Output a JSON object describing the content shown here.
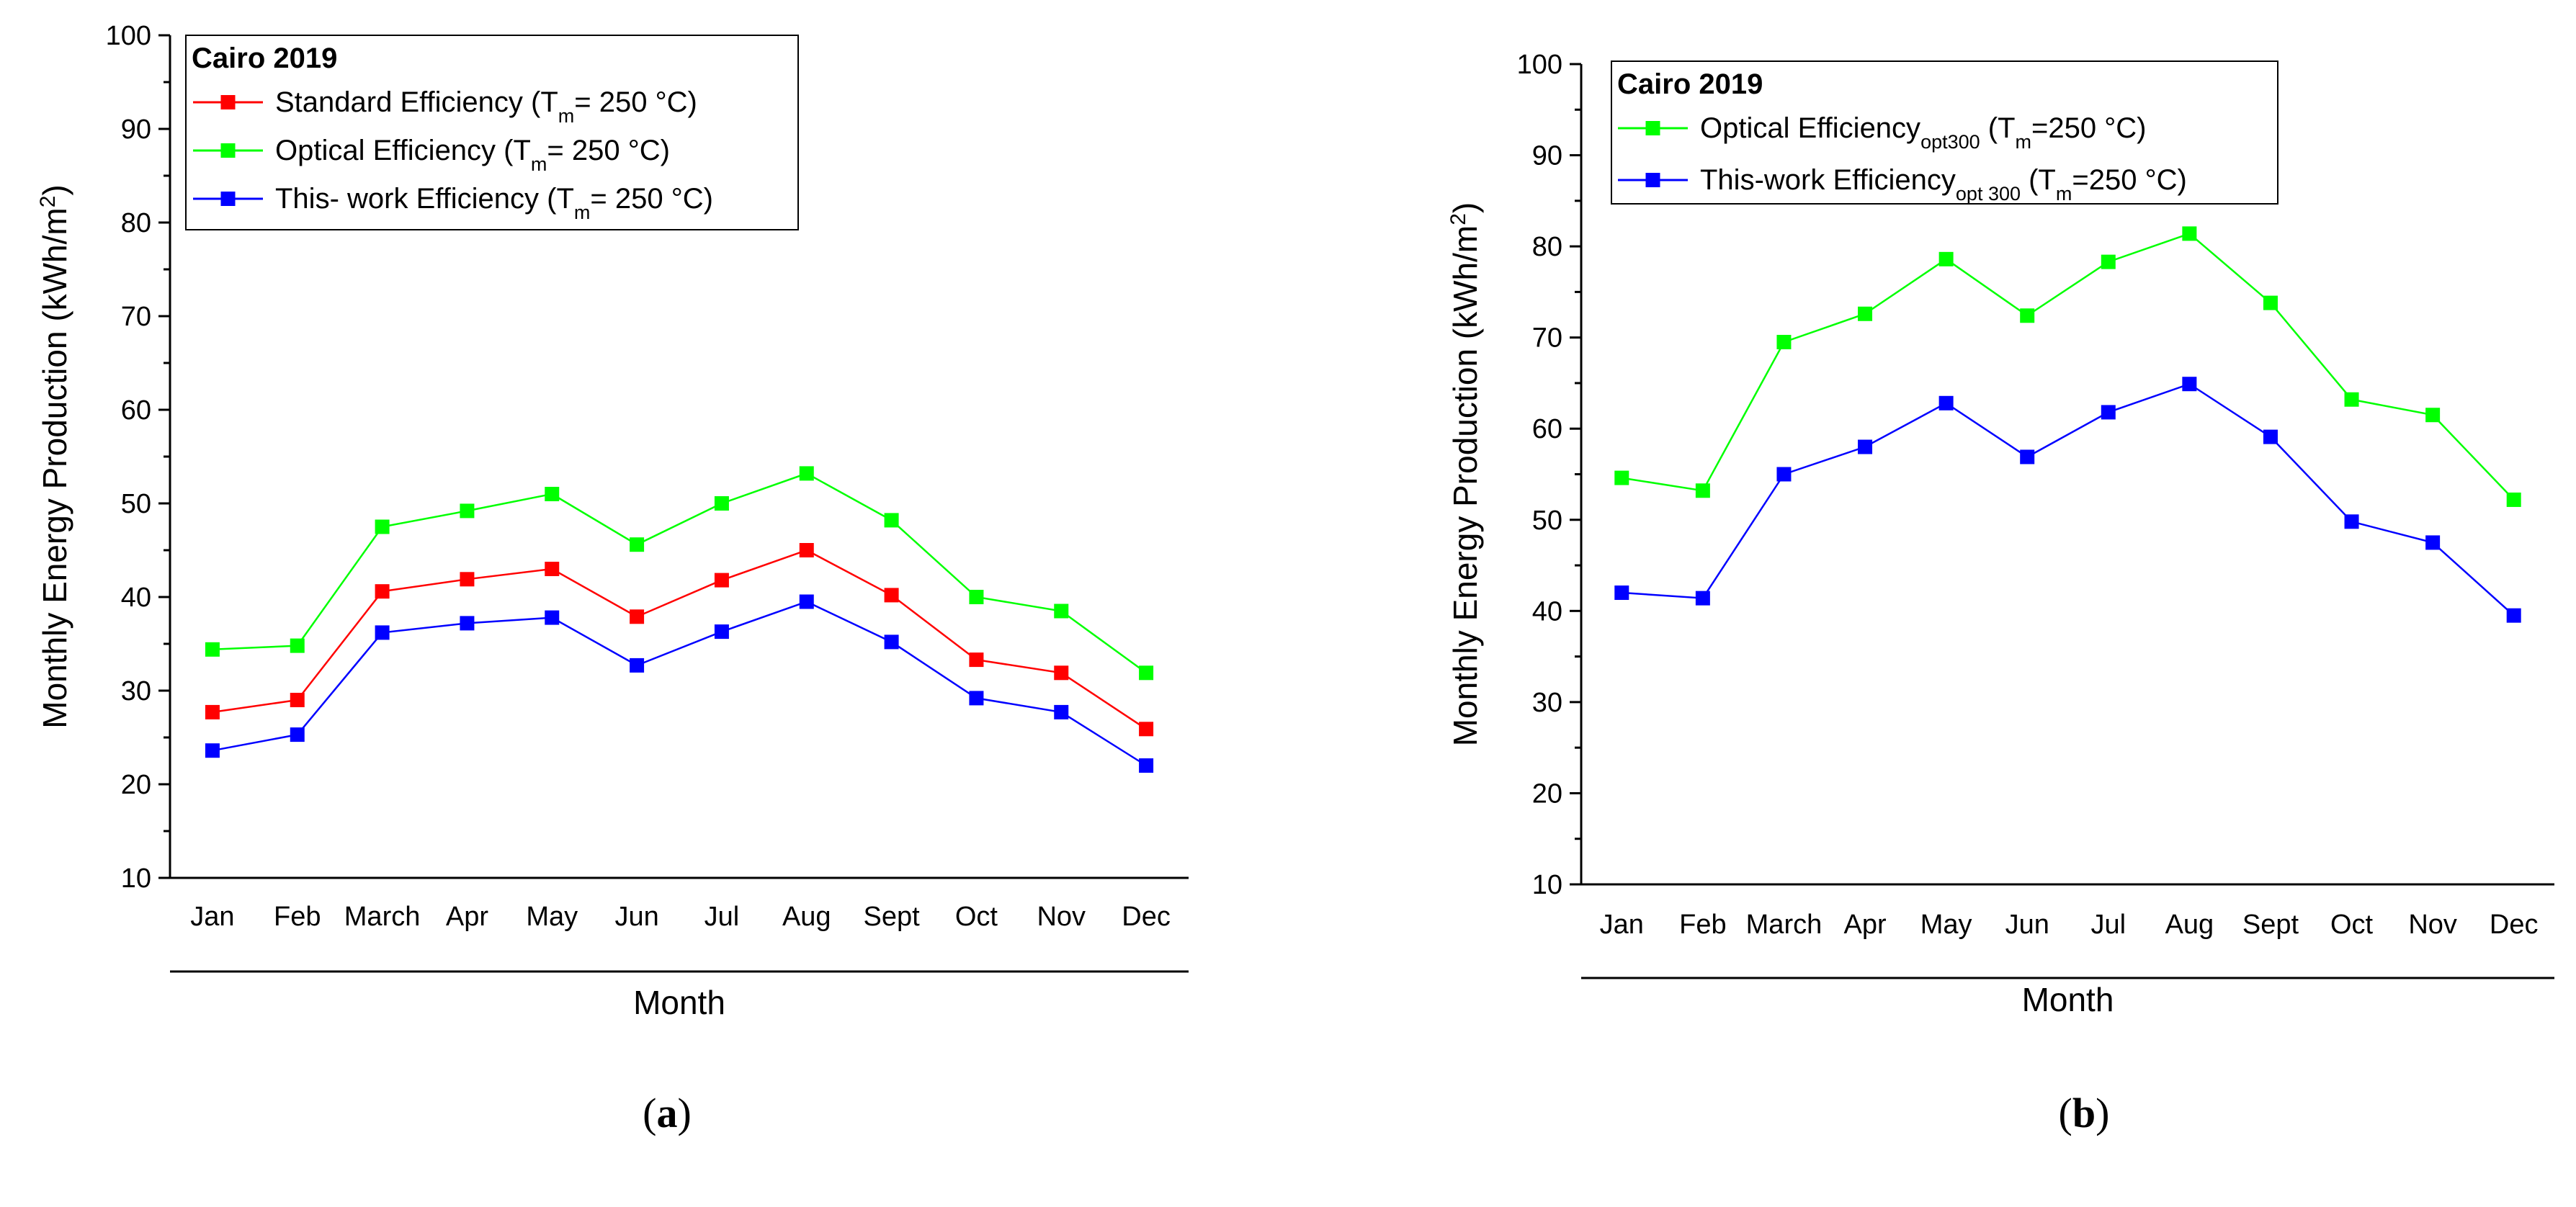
{
  "chart_data": [
    {
      "id": "a",
      "type": "line",
      "caption": "a",
      "categories": [
        "Jan",
        "Feb",
        "March",
        "Apr",
        "May",
        "Jun",
        "Jul",
        "Aug",
        "Sept",
        "Oct",
        "Nov",
        "Dec"
      ],
      "ylabel": "Monthly Energy Production (kWh/m",
      "ylabel_sup": "2",
      "ylabel_end": ")",
      "xlabel": "Month",
      "ylim": [
        10,
        100
      ],
      "yticks": [
        10,
        20,
        30,
        40,
        50,
        60,
        70,
        80,
        90,
        100
      ],
      "legend_title": "Cairo 2019",
      "legend_position": "top-left",
      "series": [
        {
          "name": "Standard Efficiency",
          "label_prefix": "Standard Efficiency (T",
          "label_sub": "m",
          "label_suffix": "= 250 °C)",
          "color": "#ff0000",
          "values": [
            27.7,
            29.0,
            40.6,
            41.9,
            43.0,
            37.9,
            41.8,
            45.0,
            40.2,
            33.3,
            31.9,
            25.9
          ]
        },
        {
          "name": "Optical Efficiency",
          "label_prefix": "Optical Efficiency (T",
          "label_sub": "m",
          "label_suffix": "= 250 °C)",
          "color": "#00ff00",
          "values": [
            34.4,
            34.8,
            47.5,
            49.2,
            51.0,
            45.6,
            50.0,
            53.2,
            48.2,
            40.0,
            38.5,
            31.9
          ]
        },
        {
          "name": "This- work Efficiency",
          "label_prefix": "This- work Efficiency (T",
          "label_sub": "m",
          "label_suffix": "= 250 °C)",
          "color": "#0000ff",
          "values": [
            23.6,
            25.3,
            36.2,
            37.2,
            37.8,
            32.7,
            36.3,
            39.5,
            35.2,
            29.2,
            27.7,
            22.0
          ]
        }
      ]
    },
    {
      "id": "b",
      "type": "line",
      "caption": "b",
      "categories": [
        "Jan",
        "Feb",
        "March",
        "Apr",
        "May",
        "Jun",
        "Jul",
        "Aug",
        "Sept",
        "Oct",
        "Nov",
        "Dec"
      ],
      "ylabel": "Monthly Energy Production (kWh/m",
      "ylabel_sup": "2",
      "ylabel_end": ")",
      "xlabel": "Month",
      "ylim": [
        10,
        100
      ],
      "yticks": [
        10,
        20,
        30,
        40,
        50,
        60,
        70,
        80,
        90,
        100
      ],
      "legend_title": "Cairo 2019",
      "legend_position": "top-left",
      "series": [
        {
          "name": "Optical Efficiency opt300",
          "label_prefix": "Optical Efficiency",
          "label_sub": "opt300",
          "label_suffix": " (T",
          "label_sub2": "m",
          "label_suffix2": "=250 °C)",
          "color": "#00ff00",
          "values": [
            54.6,
            53.2,
            69.5,
            72.6,
            78.6,
            72.4,
            78.3,
            81.4,
            73.8,
            63.2,
            61.5,
            52.2
          ]
        },
        {
          "name": "This-work Efficiency opt 300",
          "label_prefix": "This-work Efficiency",
          "label_sub": "opt 300",
          "label_suffix": " (T",
          "label_sub2": "m",
          "label_suffix2": "=250 °C)",
          "color": "#0000ff",
          "values": [
            42.0,
            41.4,
            55.0,
            58.0,
            62.8,
            56.9,
            61.8,
            64.9,
            59.1,
            49.8,
            47.5,
            39.5
          ]
        }
      ]
    }
  ]
}
